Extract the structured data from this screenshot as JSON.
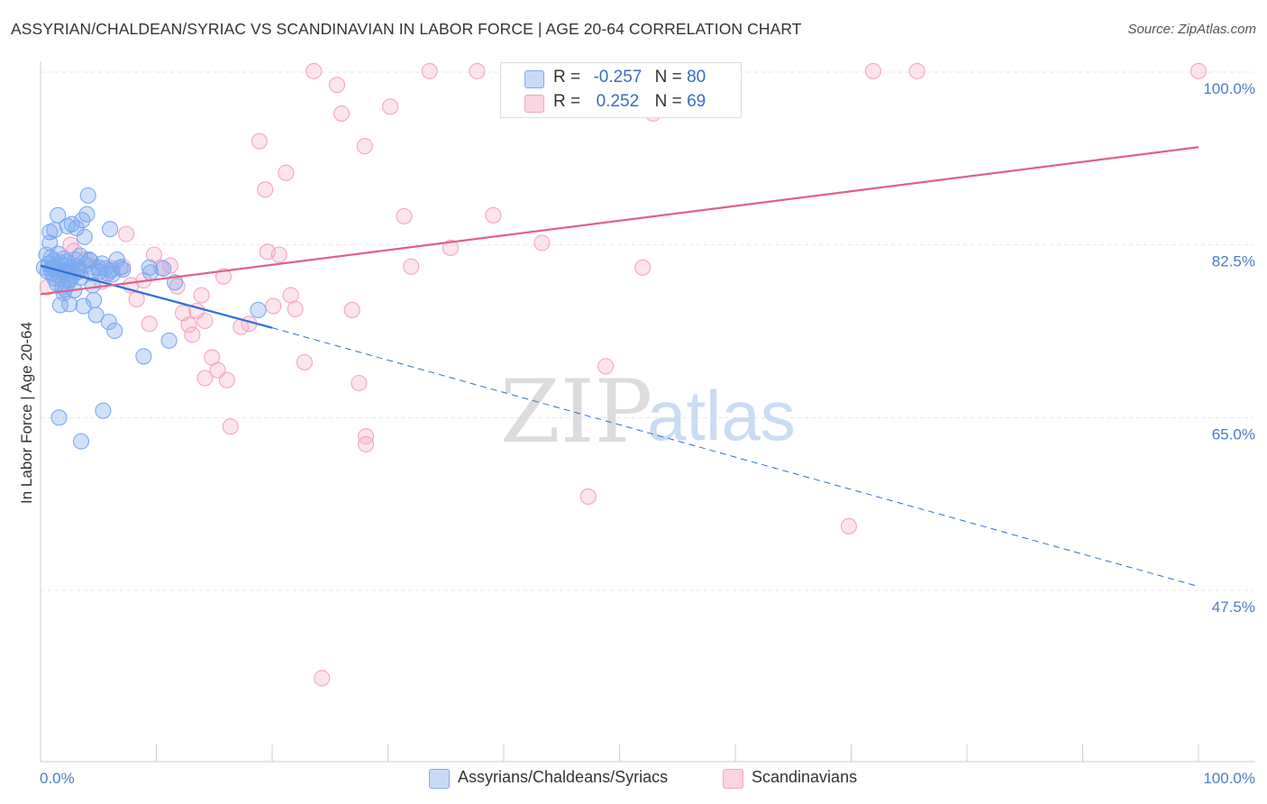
{
  "header": {
    "title": "ASSYRIAN/CHALDEAN/SYRIAC VS SCANDINAVIAN IN LABOR FORCE | AGE 20-64 CORRELATION CHART",
    "source": "Source: ZipAtlas.com"
  },
  "watermark": {
    "zip": "ZIP",
    "atlas": "atlas"
  },
  "legend": {
    "rows": [
      {
        "r_label": "R =",
        "r_value": "-0.257",
        "n_label": "N =",
        "n_value": "80",
        "color": "#7aaaf0"
      },
      {
        "r_label": "R =",
        "r_value": "0.252",
        "n_label": "N =",
        "n_value": "69",
        "color": "#f4a6bf"
      }
    ]
  },
  "bottom_legend": {
    "items": [
      {
        "label": "Assyrians/Chaldeans/Syriacs",
        "color": "#7aaaf0"
      },
      {
        "label": "Scandinavians",
        "color": "#f4a6bf"
      }
    ]
  },
  "chart_data": {
    "type": "scatter",
    "title": "ASSYRIAN/CHALDEAN/SYRIAC VS SCANDINAVIAN IN LABOR FORCE | AGE 20-64 CORRELATION CHART",
    "xlabel": "",
    "ylabel": "In Labor Force | Age 20-64",
    "xlim": [
      0,
      100
    ],
    "ylim": [
      30,
      102
    ],
    "x_tick_labels": [
      {
        "value": 0,
        "label": "0.0%"
      },
      {
        "value": 100,
        "label": "100.0%"
      }
    ],
    "y_tick_labels": [
      {
        "value": 100,
        "label": "100.0%"
      },
      {
        "value": 82.5,
        "label": "82.5%"
      },
      {
        "value": 65,
        "label": "65.0%"
      },
      {
        "value": 47.5,
        "label": "47.5%"
      }
    ],
    "grid": true,
    "series": [
      {
        "name": "Assyrians/Chaldeans/Syriacs",
        "color": "#7aaaf0",
        "line_color": "#2b6fd6",
        "r": -0.257,
        "n": 80,
        "trend": {
          "x0": 0,
          "y0": 80.4,
          "x1": 20,
          "y1": 74.1,
          "dashed_to_x": 100,
          "dashed_to_y": 47.9
        },
        "points": [
          [
            0.3,
            80.2
          ],
          [
            0.5,
            81.5
          ],
          [
            0.6,
            79.8
          ],
          [
            0.7,
            80.6
          ],
          [
            0.8,
            82.7
          ],
          [
            0.8,
            83.8
          ],
          [
            0.9,
            81.2
          ],
          [
            1.0,
            79.6
          ],
          [
            1.1,
            80.9
          ],
          [
            1.2,
            79.1
          ],
          [
            1.2,
            84.0
          ],
          [
            1.3,
            80.3
          ],
          [
            1.4,
            78.6
          ],
          [
            1.5,
            81.6
          ],
          [
            1.5,
            85.5
          ],
          [
            1.6,
            79.4
          ],
          [
            1.7,
            80.7
          ],
          [
            1.7,
            76.4
          ],
          [
            1.8,
            79.9
          ],
          [
            1.9,
            78.2
          ],
          [
            2.0,
            81.1
          ],
          [
            2.0,
            77.6
          ],
          [
            2.1,
            80.4
          ],
          [
            2.2,
            79.7
          ],
          [
            2.3,
            84.4
          ],
          [
            2.3,
            80.8
          ],
          [
            2.4,
            78.9
          ],
          [
            2.5,
            79.6
          ],
          [
            2.5,
            76.5
          ],
          [
            2.6,
            80.2
          ],
          [
            2.7,
            84.6
          ],
          [
            2.8,
            79.4
          ],
          [
            2.9,
            77.9
          ],
          [
            3.0,
            81.0
          ],
          [
            3.1,
            84.2
          ],
          [
            3.2,
            79.8
          ],
          [
            3.3,
            80.1
          ],
          [
            3.4,
            81.4
          ],
          [
            3.5,
            79.2
          ],
          [
            3.5,
            62.6
          ],
          [
            3.6,
            85.0
          ],
          [
            3.7,
            76.3
          ],
          [
            3.8,
            83.3
          ],
          [
            3.9,
            80.5
          ],
          [
            4.0,
            85.6
          ],
          [
            4.1,
            87.5
          ],
          [
            4.2,
            81.0
          ],
          [
            4.4,
            79.6
          ],
          [
            4.5,
            78.4
          ],
          [
            4.6,
            76.9
          ],
          [
            4.8,
            75.4
          ],
          [
            5.0,
            80.2
          ],
          [
            5.1,
            79.8
          ],
          [
            5.3,
            80.6
          ],
          [
            5.4,
            65.7
          ],
          [
            5.6,
            80.1
          ],
          [
            5.8,
            79.6
          ],
          [
            5.9,
            74.7
          ],
          [
            6.0,
            84.1
          ],
          [
            6.1,
            79.9
          ],
          [
            6.2,
            79.5
          ],
          [
            6.4,
            73.8
          ],
          [
            6.6,
            81.0
          ],
          [
            6.9,
            80.2
          ],
          [
            7.1,
            80.0
          ],
          [
            8.9,
            71.2
          ],
          [
            9.4,
            80.2
          ],
          [
            9.5,
            79.7
          ],
          [
            10.6,
            80.1
          ],
          [
            11.1,
            72.8
          ],
          [
            11.6,
            78.7
          ],
          [
            18.8,
            75.9
          ],
          [
            1.1,
            80.2
          ],
          [
            1.9,
            80.0
          ],
          [
            2.6,
            79.0
          ],
          [
            3.2,
            80.3
          ],
          [
            4.3,
            80.9
          ],
          [
            1.6,
            65.0
          ],
          [
            0.9,
            80.1
          ],
          [
            2.1,
            78.0
          ]
        ]
      },
      {
        "name": "Scandinavians",
        "color": "#f4a6bf",
        "line_color": "#e0608a",
        "r": 0.252,
        "n": 69,
        "trend": {
          "x0": 0,
          "y0": 77.5,
          "x1": 100,
          "y1": 92.4
        },
        "points": [
          [
            0.6,
            78.2
          ],
          [
            1.2,
            80.2
          ],
          [
            1.8,
            79.1
          ],
          [
            2.3,
            78.5
          ],
          [
            2.6,
            82.5
          ],
          [
            2.9,
            81.9
          ],
          [
            3.4,
            79.8
          ],
          [
            3.9,
            81.0
          ],
          [
            4.6,
            80.2
          ],
          [
            5.3,
            78.8
          ],
          [
            6.2,
            80.1
          ],
          [
            7.1,
            80.3
          ],
          [
            7.4,
            83.6
          ],
          [
            7.8,
            78.4
          ],
          [
            8.3,
            77.0
          ],
          [
            8.9,
            78.9
          ],
          [
            9.4,
            74.5
          ],
          [
            9.8,
            81.5
          ],
          [
            10.4,
            80.2
          ],
          [
            11.2,
            80.4
          ],
          [
            11.8,
            78.3
          ],
          [
            12.3,
            75.6
          ],
          [
            12.8,
            74.4
          ],
          [
            13.1,
            73.4
          ],
          [
            13.5,
            75.8
          ],
          [
            13.9,
            77.4
          ],
          [
            14.2,
            69.0
          ],
          [
            14.8,
            71.1
          ],
          [
            15.3,
            69.8
          ],
          [
            15.8,
            79.3
          ],
          [
            16.4,
            64.1
          ],
          [
            17.3,
            74.2
          ],
          [
            18.0,
            74.5
          ],
          [
            18.9,
            93.0
          ],
          [
            19.4,
            88.1
          ],
          [
            19.6,
            81.8
          ],
          [
            20.1,
            76.3
          ],
          [
            20.6,
            81.5
          ],
          [
            21.2,
            89.8
          ],
          [
            21.6,
            77.4
          ],
          [
            22.0,
            76.0
          ],
          [
            22.8,
            70.6
          ],
          [
            23.6,
            100.1
          ],
          [
            25.6,
            98.7
          ],
          [
            26.0,
            95.8
          ],
          [
            26.9,
            75.9
          ],
          [
            27.5,
            68.5
          ],
          [
            28.0,
            92.5
          ],
          [
            28.1,
            62.3
          ],
          [
            30.2,
            96.5
          ],
          [
            31.4,
            85.4
          ],
          [
            32.0,
            80.3
          ],
          [
            33.6,
            100.1
          ],
          [
            35.4,
            82.2
          ],
          [
            37.7,
            100.1
          ],
          [
            39.1,
            85.5
          ],
          [
            43.3,
            82.7
          ],
          [
            47.3,
            57.0
          ],
          [
            48.8,
            70.2
          ],
          [
            52.0,
            80.2
          ],
          [
            52.9,
            95.8
          ],
          [
            69.8,
            54.0
          ],
          [
            71.9,
            100.1
          ],
          [
            75.7,
            100.1
          ],
          [
            100.0,
            100.1
          ],
          [
            24.3,
            38.6
          ],
          [
            16.1,
            68.8
          ],
          [
            28.1,
            63.1
          ],
          [
            14.2,
            74.8
          ]
        ]
      }
    ]
  }
}
